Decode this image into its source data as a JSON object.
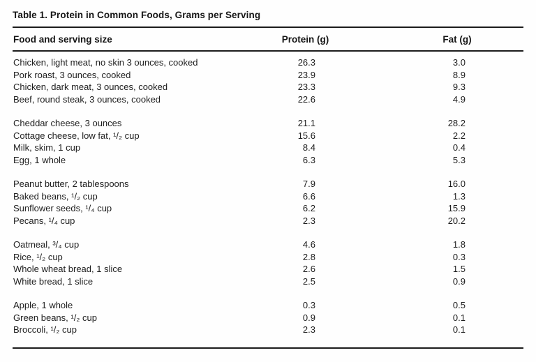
{
  "title": "Table 1. Protein in Common Foods, Grams per Serving",
  "table": {
    "columns": {
      "food": "Food and serving size",
      "protein": "Protein (g)",
      "fat": "Fat (g)"
    },
    "groups": [
      {
        "rows": [
          {
            "food": "Chicken, light meat, no skin 3 ounces, cooked",
            "protein": "26.3",
            "fat": "3.0"
          },
          {
            "food": "Pork roast, 3 ounces, cooked",
            "protein": "23.9",
            "fat": "8.9"
          },
          {
            "food": "Chicken, dark meat, 3 ounces, cooked",
            "protein": "23.3",
            "fat": "9.3"
          },
          {
            "food": "Beef, round steak, 3 ounces, cooked",
            "protein": "22.6",
            "fat": "4.9"
          }
        ]
      },
      {
        "rows": [
          {
            "food": "Cheddar cheese, 3 ounces",
            "protein": "21.1",
            "fat": "28.2"
          },
          {
            "food": "Cottage cheese, low fat, ¹/₂ cup",
            "protein": "15.6",
            "fat": "2.2"
          },
          {
            "food": "Milk, skim, 1 cup",
            "protein": "8.4",
            "fat": "0.4"
          },
          {
            "food": "Egg, 1 whole",
            "protein": "6.3",
            "fat": "5.3"
          }
        ]
      },
      {
        "rows": [
          {
            "food": "Peanut butter, 2 tablespoons",
            "protein": "7.9",
            "fat": "16.0"
          },
          {
            "food": "Baked beans, ¹/₂ cup",
            "protein": "6.6",
            "fat": "1.3"
          },
          {
            "food": "Sunflower seeds, ¹/₄ cup",
            "protein": "6.2",
            "fat": "15.9"
          },
          {
            "food": "Pecans, ¹/₄ cup",
            "protein": "2.3",
            "fat": "20.2"
          }
        ]
      },
      {
        "rows": [
          {
            "food": "Oatmeal, ³/₄ cup",
            "protein": "4.6",
            "fat": "1.8"
          },
          {
            "food": "Rice, ¹/₂ cup",
            "protein": "2.8",
            "fat": "0.3"
          },
          {
            "food": "Whole wheat bread, 1 slice",
            "protein": "2.6",
            "fat": "1.5"
          },
          {
            "food": "White bread, 1 slice",
            "protein": "2.5",
            "fat": "0.9"
          }
        ]
      },
      {
        "rows": [
          {
            "food": "Apple, 1 whole",
            "protein": "0.3",
            "fat": "0.5"
          },
          {
            "food": "Green beans, ¹/₂ cup",
            "protein": "0.9",
            "fat": "0.1"
          },
          {
            "food": "Broccoli, ¹/₂ cup",
            "protein": "2.3",
            "fat": "0.1"
          }
        ]
      }
    ]
  },
  "chart_data": {
    "type": "table",
    "title": "Table 1. Protein in Common Foods, Grams per Serving",
    "columns": [
      "Food and serving size",
      "Protein (g)",
      "Fat (g)"
    ],
    "rows": [
      [
        "Chicken, light meat, no skin 3 ounces, cooked",
        26.3,
        3.0
      ],
      [
        "Pork roast, 3 ounces, cooked",
        23.9,
        8.9
      ],
      [
        "Chicken, dark meat, 3 ounces, cooked",
        23.3,
        9.3
      ],
      [
        "Beef, round steak, 3 ounces, cooked",
        22.6,
        4.9
      ],
      [
        "Cheddar cheese, 3 ounces",
        21.1,
        28.2
      ],
      [
        "Cottage cheese, low fat, 1/2 cup",
        15.6,
        2.2
      ],
      [
        "Milk, skim, 1 cup",
        8.4,
        0.4
      ],
      [
        "Egg, 1 whole",
        6.3,
        5.3
      ],
      [
        "Peanut butter, 2 tablespoons",
        7.9,
        16.0
      ],
      [
        "Baked beans, 1/2 cup",
        6.6,
        1.3
      ],
      [
        "Sunflower seeds, 1/4 cup",
        6.2,
        15.9
      ],
      [
        "Pecans, 1/4 cup",
        2.3,
        20.2
      ],
      [
        "Oatmeal, 3/4 cup",
        4.6,
        1.8
      ],
      [
        "Rice, 1/2 cup",
        2.8,
        0.3
      ],
      [
        "Whole wheat bread, 1 slice",
        2.6,
        1.5
      ],
      [
        "White bread, 1 slice",
        2.5,
        0.9
      ],
      [
        "Apple, 1 whole",
        0.3,
        0.5
      ],
      [
        "Green beans, 1/2 cup",
        0.9,
        0.1
      ],
      [
        "Broccoli, 1/2 cup",
        2.3,
        0.1
      ]
    ]
  }
}
